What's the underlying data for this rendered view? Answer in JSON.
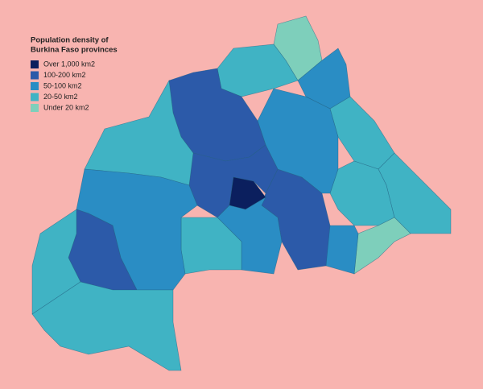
{
  "title_lines": [
    "Population density of",
    "Burkina Faso provinces"
  ],
  "legend": {
    "items": [
      {
        "label": "Over 1,000 km2",
        "color": "#0b1f5e"
      },
      {
        "label": "100-200 km2",
        "color": "#2c5aa9"
      },
      {
        "label": "50-100 km2",
        "color": "#2a8dc4"
      },
      {
        "label": "20-50 km2",
        "color": "#40b3c4"
      },
      {
        "label": "Under 20 km2",
        "color": "#7ecfbb"
      }
    ]
  }
}
